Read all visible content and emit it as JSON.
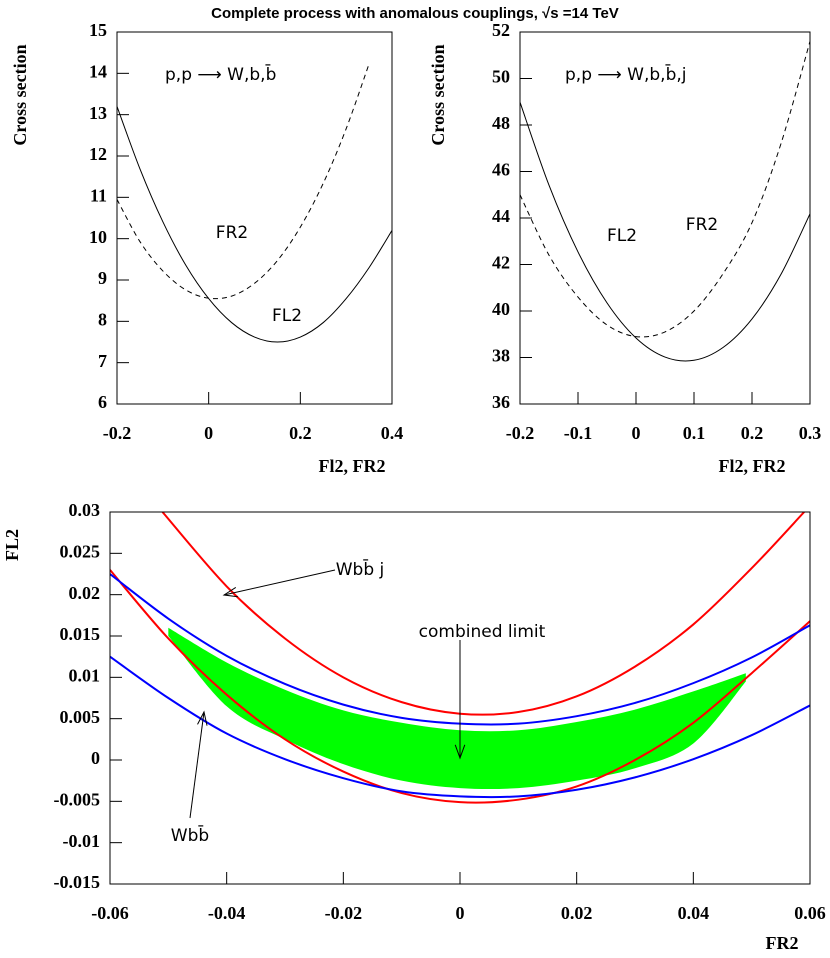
{
  "title": "Complete process with anomalous couplings, √s =14 TeV",
  "chart_data": [
    {
      "type": "line",
      "annotation": "p,p ⟶ W,b,b̄",
      "ylabel": "Cross section",
      "xlabel": "Fl2, FR2",
      "xlim": [
        -0.2,
        0.4
      ],
      "xticks": [
        -0.2,
        0,
        0.2,
        0.4
      ],
      "ylim": [
        6,
        15
      ],
      "yticks": [
        6,
        7,
        8,
        9,
        10,
        11,
        12,
        13,
        14,
        15
      ],
      "x": [
        -0.2,
        -0.15,
        -0.1,
        -0.05,
        0,
        0.05,
        0.1,
        0.15,
        0.2,
        0.25,
        0.3,
        0.35,
        0.4
      ],
      "series": [
        {
          "name": "FL2",
          "color": "#000000",
          "style": "solid",
          "values": [
            13.2,
            11.69,
            10.41,
            9.36,
            8.55,
            7.97,
            7.62,
            7.5,
            7.62,
            7.97,
            8.55,
            9.3,
            10.2
          ]
        },
        {
          "name": "FR2",
          "color": "#000000",
          "style": "dashed",
          "values": [
            10.95,
            9.93,
            9.22,
            8.76,
            8.56,
            8.61,
            8.92,
            9.47,
            10.28,
            11.34,
            12.66,
            14.23,
            null
          ]
        }
      ]
    },
    {
      "type": "line",
      "annotation": "p,p ⟶ W,b,b̄,j",
      "ylabel": "Cross section",
      "xlabel": "Fl2, FR2",
      "xlim": [
        -0.2,
        0.3
      ],
      "xticks": [
        -0.2,
        -0.1,
        0,
        0.1,
        0.2,
        0.3
      ],
      "ylim": [
        36,
        52
      ],
      "yticks": [
        36,
        38,
        40,
        42,
        44,
        46,
        48,
        50,
        52
      ],
      "x": [
        -0.2,
        -0.15,
        -0.1,
        -0.05,
        0,
        0.05,
        0.1,
        0.15,
        0.2,
        0.25,
        0.3
      ],
      "series": [
        {
          "name": "FL2",
          "color": "#000000",
          "style": "solid",
          "values": [
            48.98,
            45.41,
            42.54,
            40.35,
            38.84,
            38.02,
            37.88,
            38.43,
            39.66,
            41.58,
            44.18
          ]
        },
        {
          "name": "FR2",
          "color": "#000000",
          "style": "dashed",
          "values": [
            45.0,
            42.4,
            40.6,
            39.4,
            38.9,
            39.1,
            40.0,
            41.6,
            43.8,
            47.2,
            51.6
          ]
        }
      ]
    },
    {
      "type": "line",
      "xlabel": "FR2",
      "ylabel": "FL2",
      "annotations": [
        "Wbb̄ j",
        "combined limit",
        "Wbb̄"
      ],
      "xlim": [
        -0.06,
        0.06
      ],
      "xticks": [
        -0.06,
        -0.04,
        -0.02,
        0,
        0.02,
        0.04,
        0.06
      ],
      "ylim": [
        -0.015,
        0.03
      ],
      "yticks": [
        -0.015,
        -0.01,
        -0.005,
        0,
        0.005,
        0.01,
        0.015,
        0.02,
        0.025,
        0.03
      ],
      "series": [
        {
          "type": "area",
          "color": "#00ff00",
          "x": [
            -0.05,
            -0.04,
            -0.03,
            -0.02,
            -0.01,
            0,
            0.01,
            0.02,
            0.03,
            0.04,
            0.049
          ],
          "upper": [
            0.016,
            0.0118,
            0.0085,
            0.006,
            0.0045,
            0.0036,
            0.0036,
            0.0046,
            0.0061,
            0.0083,
            0.0105
          ],
          "lower": [
            0.015,
            0.0065,
            0.0025,
            -0.0005,
            -0.0025,
            -0.0034,
            -0.0034,
            -0.0025,
            -0.001,
            0.002,
            0.0095
          ]
        },
        {
          "color": "#ff0000",
          "x": [
            -0.051,
            -0.04,
            -0.03,
            -0.02,
            -0.01,
            0,
            0.01,
            0.02,
            0.03,
            0.04,
            0.05,
            0.059
          ],
          "values": [
            0.03,
            0.021,
            0.0147,
            0.01,
            0.007,
            0.0056,
            0.0058,
            0.0077,
            0.0113,
            0.0164,
            0.0232,
            0.03
          ]
        },
        {
          "color": "#ff0000",
          "x": [
            -0.06,
            -0.05,
            -0.04,
            -0.03,
            -0.02,
            -0.01,
            0,
            0.01,
            0.02,
            0.03,
            0.04,
            0.05,
            0.06
          ],
          "values": [
            0.023,
            0.0147,
            0.0079,
            0.0025,
            -0.0014,
            -0.004,
            -0.0051,
            -0.0048,
            -0.0032,
            0.0,
            0.0045,
            0.0105,
            0.0168
          ]
        },
        {
          "color": "#0000ff",
          "x": [
            -0.06,
            -0.05,
            -0.04,
            -0.03,
            -0.02,
            -0.01,
            0,
            0.01,
            0.02,
            0.03,
            0.04,
            0.05,
            0.06
          ],
          "values": [
            0.0225,
            0.0171,
            0.0126,
            0.0092,
            0.0067,
            0.0051,
            0.0044,
            0.0044,
            0.0053,
            0.0069,
            0.0093,
            0.0124,
            0.0163
          ]
        },
        {
          "color": "#0000ff",
          "x": [
            -0.06,
            -0.05,
            -0.04,
            -0.03,
            -0.02,
            -0.01,
            0,
            0.01,
            0.02,
            0.03,
            0.04,
            0.05,
            0.06
          ],
          "values": [
            0.0125,
            0.0075,
            0.0032,
            0.0001,
            -0.0022,
            -0.0038,
            -0.0044,
            -0.0044,
            -0.0036,
            -0.0021,
            0.0001,
            0.003,
            0.0066
          ]
        }
      ]
    }
  ]
}
